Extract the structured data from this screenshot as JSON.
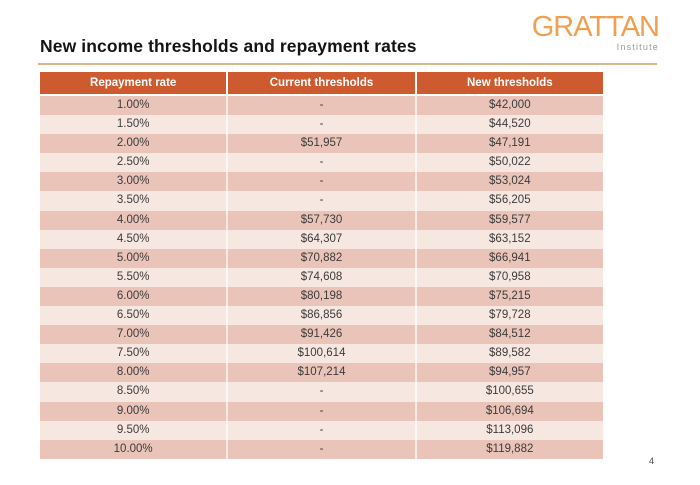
{
  "title": "New income thresholds and repayment rates",
  "logo": {
    "brand": "GRATTAN",
    "subtitle": "Institute"
  },
  "page_number": "4",
  "table": {
    "columns": [
      "Repayment rate",
      "Current thresholds",
      "New thresholds"
    ],
    "rows": [
      [
        "1.00%",
        "-",
        "$42,000"
      ],
      [
        "1.50%",
        "-",
        "$44,520"
      ],
      [
        "2.00%",
        "$51,957",
        "$47,191"
      ],
      [
        "2.50%",
        "-",
        "$50,022"
      ],
      [
        "3.00%",
        "-",
        "$53,024"
      ],
      [
        "3.50%",
        "-",
        "$56,205"
      ],
      [
        "4.00%",
        "$57,730",
        "$59,577"
      ],
      [
        "4.50%",
        "$64,307",
        "$63,152"
      ],
      [
        "5.00%",
        "$70,882",
        "$66,941"
      ],
      [
        "5.50%",
        "$74,608",
        "$70,958"
      ],
      [
        "6.00%",
        "$80,198",
        "$75,215"
      ],
      [
        "6.50%",
        "$86,856",
        "$79,728"
      ],
      [
        "7.00%",
        "$91,426",
        "$84,512"
      ],
      [
        "7.50%",
        "$100,614",
        "$89,582"
      ],
      [
        "8.00%",
        "$107,214",
        "$94,957"
      ],
      [
        "8.50%",
        "-",
        "$100,655"
      ],
      [
        "9.00%",
        "-",
        "$106,694"
      ],
      [
        "9.50%",
        "-",
        "$113,096"
      ],
      [
        "10.00%",
        "-",
        "$119,882"
      ]
    ]
  },
  "colors": {
    "header_bg": "#CE5B30",
    "row_dark": "#EAC4B9",
    "row_light": "#F7E7E1",
    "accent_line": "#DBB88B",
    "logo_orange": "#EFA050"
  }
}
